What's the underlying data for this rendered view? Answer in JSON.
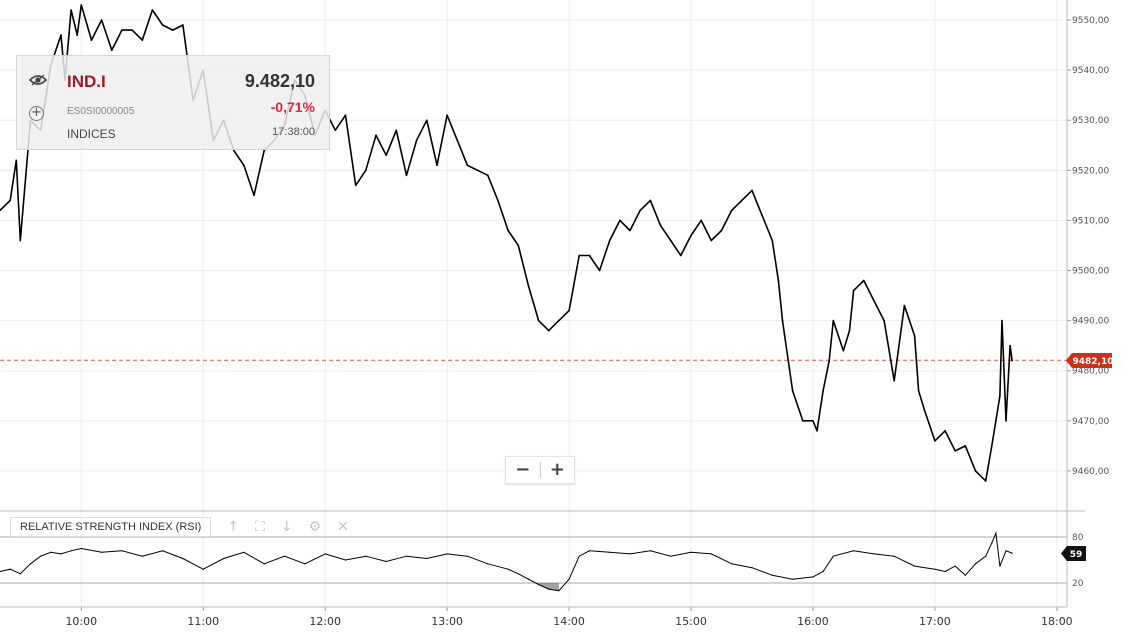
{
  "quote": {
    "symbol": "IND.I",
    "isin": "ES0SI0000005",
    "type": "INDICES",
    "price": "9.482,10",
    "change": "-0,71%",
    "time": "17:38:00"
  },
  "price_tag": {
    "label": "9482,10",
    "color": "#c8321a"
  },
  "rsi": {
    "title": "RELATIVE STRENGTH INDEX (RSI)",
    "value_label": "59",
    "levels": [
      "80",
      "20"
    ]
  },
  "zoom": {
    "minus": "−",
    "plus": "+"
  },
  "colors": {
    "line": "#000000",
    "last_price_line": "#e05a4e",
    "grid": "#ececec",
    "rsi_fill": "#555555"
  },
  "chart_data": [
    {
      "type": "line",
      "x_ticks": [
        "10:00",
        "11:00",
        "12:00",
        "13:00",
        "14:00",
        "15:00",
        "16:00",
        "17:00",
        "18:00"
      ],
      "y_ticks": [
        "9550,00",
        "9540,00",
        "9530,00",
        "9520,00",
        "9510,00",
        "9500,00",
        "9490,00",
        "9480,00",
        "9470,00",
        "9460,00"
      ],
      "ylim": [
        9452,
        9554
      ],
      "xlim": [
        "09:20",
        "18:05"
      ],
      "grid": true,
      "last_value": 9482.1,
      "x": [
        "09:20",
        "09:25",
        "09:28",
        "09:30",
        "09:35",
        "09:40",
        "09:45",
        "09:50",
        "09:52",
        "09:55",
        "09:58",
        "10:00",
        "10:05",
        "10:10",
        "10:15",
        "10:20",
        "10:25",
        "10:30",
        "10:35",
        "10:40",
        "10:45",
        "10:50",
        "10:55",
        "11:00",
        "11:05",
        "11:10",
        "11:15",
        "11:20",
        "11:25",
        "11:30",
        "11:35",
        "11:40",
        "11:45",
        "11:50",
        "11:55",
        "12:00",
        "12:05",
        "12:10",
        "12:15",
        "12:20",
        "12:25",
        "12:30",
        "12:35",
        "12:40",
        "12:45",
        "12:50",
        "12:55",
        "13:00",
        "13:05",
        "13:10",
        "13:15",
        "13:20",
        "13:25",
        "13:30",
        "13:35",
        "13:40",
        "13:45",
        "13:50",
        "13:55",
        "14:00",
        "14:05",
        "14:10",
        "14:15",
        "14:20",
        "14:25",
        "14:30",
        "14:35",
        "14:40",
        "14:45",
        "14:50",
        "14:55",
        "15:00",
        "15:05",
        "15:10",
        "15:15",
        "15:20",
        "15:25",
        "15:30",
        "15:35",
        "15:40",
        "15:43",
        "15:45",
        "15:50",
        "15:55",
        "16:00",
        "16:02",
        "16:05",
        "16:08",
        "16:10",
        "16:15",
        "16:18",
        "16:20",
        "16:25",
        "16:30",
        "16:35",
        "16:40",
        "16:45",
        "16:50",
        "16:52",
        "16:55",
        "17:00",
        "17:05",
        "17:10",
        "17:15",
        "17:20",
        "17:25",
        "17:28",
        "17:30",
        "17:32",
        "17:33",
        "17:35",
        "17:37",
        "17:38"
      ],
      "y": [
        9512,
        9514,
        9522,
        9506,
        9530,
        9528,
        9541,
        9547,
        9538,
        9552,
        9547,
        9553,
        9546,
        9550,
        9544,
        9548,
        9548,
        9546,
        9552,
        9549,
        9548,
        9549,
        9534,
        9540,
        9526,
        9530,
        9524,
        9521,
        9515,
        9524,
        9526,
        9529,
        9538,
        9535,
        9527,
        9532,
        9528,
        9531,
        9517,
        9520,
        9527,
        9523,
        9528,
        9519,
        9526,
        9530,
        9521,
        9531,
        9526,
        9521,
        9520,
        9519,
        9514,
        9508,
        9505,
        9497,
        9490,
        9488,
        9490,
        9492,
        9503,
        9503,
        9500,
        9506,
        9510,
        9508,
        9512,
        9514,
        9509,
        9506,
        9503,
        9507,
        9510,
        9506,
        9508,
        9512,
        9514,
        9516,
        9511,
        9506,
        9498,
        9490,
        9476,
        9470,
        9470,
        9468,
        9476,
        9482,
        9490,
        9484,
        9488,
        9496,
        9498,
        9494,
        9490,
        9478,
        9493,
        9487,
        9476,
        9472,
        9466,
        9468,
        9464,
        9465,
        9460,
        9458,
        9465,
        9470,
        9475,
        9490,
        9470,
        9485,
        9482
      ]
    },
    {
      "type": "line",
      "title": "RELATIVE STRENGTH INDEX (RSI)",
      "y_ticks": [
        "80",
        "20"
      ],
      "ylim": [
        0,
        100
      ],
      "levels": [
        80,
        20
      ],
      "last_value": 59,
      "x": [
        "09:20",
        "09:25",
        "09:30",
        "09:35",
        "09:40",
        "09:45",
        "09:50",
        "09:55",
        "10:00",
        "10:10",
        "10:20",
        "10:30",
        "10:40",
        "10:50",
        "11:00",
        "11:10",
        "11:20",
        "11:30",
        "11:40",
        "11:50",
        "12:00",
        "12:10",
        "12:20",
        "12:30",
        "12:40",
        "12:50",
        "13:00",
        "13:10",
        "13:20",
        "13:30",
        "13:35",
        "13:40",
        "13:45",
        "13:50",
        "13:55",
        "14:00",
        "14:05",
        "14:10",
        "14:20",
        "14:30",
        "14:40",
        "14:50",
        "15:00",
        "15:10",
        "15:20",
        "15:30",
        "15:40",
        "15:50",
        "16:00",
        "16:05",
        "16:10",
        "16:20",
        "16:30",
        "16:40",
        "16:50",
        "17:00",
        "17:05",
        "17:10",
        "17:15",
        "17:20",
        "17:25",
        "17:28",
        "17:30",
        "17:32",
        "17:35",
        "17:38"
      ],
      "y": [
        35,
        38,
        32,
        45,
        55,
        60,
        58,
        62,
        65,
        60,
        62,
        55,
        62,
        52,
        38,
        52,
        60,
        45,
        55,
        45,
        58,
        50,
        55,
        48,
        55,
        52,
        58,
        55,
        45,
        38,
        32,
        25,
        18,
        12,
        10,
        25,
        55,
        62,
        60,
        58,
        62,
        55,
        60,
        58,
        45,
        40,
        30,
        25,
        28,
        35,
        55,
        62,
        58,
        55,
        42,
        38,
        35,
        42,
        30,
        45,
        55,
        72,
        85,
        42,
        62,
        59
      ]
    }
  ]
}
